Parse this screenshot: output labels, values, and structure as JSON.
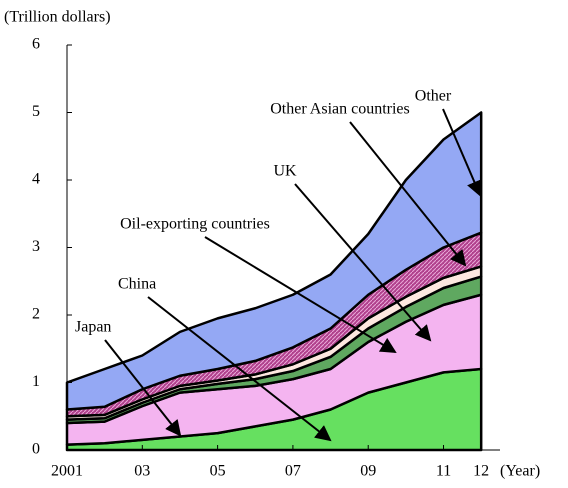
{
  "chart_data": {
    "type": "stacked-area",
    "y_label": "(Trillion dollars)",
    "x_label": "(Year)",
    "x": [
      2001,
      2002,
      2003,
      2004,
      2005,
      2006,
      2007,
      2008,
      2009,
      2010,
      2011,
      2012
    ],
    "series": [
      {
        "name": "China",
        "color": "#66e060",
        "values": [
          0.08,
          0.1,
          0.15,
          0.2,
          0.25,
          0.35,
          0.45,
          0.6,
          0.85,
          1.0,
          1.15,
          1.2
        ]
      },
      {
        "name": "Japan",
        "color": "#f4b4f0",
        "values": [
          0.32,
          0.32,
          0.5,
          0.65,
          0.65,
          0.6,
          0.6,
          0.6,
          0.75,
          0.9,
          1.0,
          1.1
        ]
      },
      {
        "name": "Oil-exporting countries",
        "color": "#5fa860",
        "values": [
          0.05,
          0.05,
          0.05,
          0.05,
          0.08,
          0.1,
          0.12,
          0.18,
          0.2,
          0.22,
          0.25,
          0.27
        ]
      },
      {
        "name": "UK",
        "color": "#fde8e0",
        "values": [
          0.05,
          0.05,
          0.05,
          0.05,
          0.05,
          0.07,
          0.1,
          0.12,
          0.15,
          0.15,
          0.15,
          0.15
        ]
      },
      {
        "name": "Other Asian countries",
        "color": "#b0408c",
        "values": [
          0.1,
          0.12,
          0.15,
          0.15,
          0.17,
          0.2,
          0.25,
          0.3,
          0.35,
          0.4,
          0.45,
          0.5
        ]
      },
      {
        "name": "Other",
        "color": "#94a8f4",
        "values": [
          0.4,
          0.56,
          0.5,
          0.65,
          0.75,
          0.78,
          0.78,
          0.8,
          0.9,
          1.33,
          1.6,
          1.78
        ]
      }
    ],
    "xlim": [
      2001,
      2012.5
    ],
    "xticks": [
      {
        "value": 2001,
        "label": "2001"
      },
      {
        "value": 2003,
        "label": "03"
      },
      {
        "value": 2005,
        "label": "05"
      },
      {
        "value": 2007,
        "label": "07"
      },
      {
        "value": 2009,
        "label": "09"
      },
      {
        "value": 2011,
        "label": "11"
      },
      {
        "value": 2012,
        "label": "12"
      }
    ],
    "ylim": [
      0,
      6
    ],
    "yticks": [
      0,
      1,
      2,
      3,
      4,
      5,
      6
    ]
  }
}
